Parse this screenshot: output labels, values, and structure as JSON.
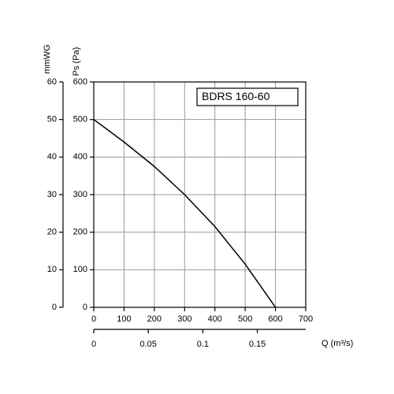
{
  "chart_data": {
    "type": "line",
    "title": "BDRS 160-60",
    "x": [
      0,
      100,
      200,
      300,
      400,
      500,
      600
    ],
    "series": [
      {
        "color": "#000000",
        "values": [
          500,
          440,
          375,
          300,
          215,
          115,
          0
        ]
      }
    ],
    "xlim": [
      0,
      700
    ],
    "xticks": [
      0,
      100,
      200,
      300,
      400,
      500,
      600,
      700
    ],
    "ylim": [
      0,
      600
    ],
    "yticks": [
      0,
      100,
      200,
      300,
      400,
      500,
      600
    ],
    "ylabel": "Ps (Pa)",
    "y2lim": [
      0,
      60
    ],
    "y2ticks": [
      0,
      10,
      20,
      30,
      40,
      50,
      60
    ],
    "y2label": "mmWG",
    "x2lim": [
      0,
      0.1944
    ],
    "x2ticks": [
      0,
      0.05,
      0.1,
      0.15
    ],
    "x2label": "Q (m³/s)",
    "grid": true
  }
}
